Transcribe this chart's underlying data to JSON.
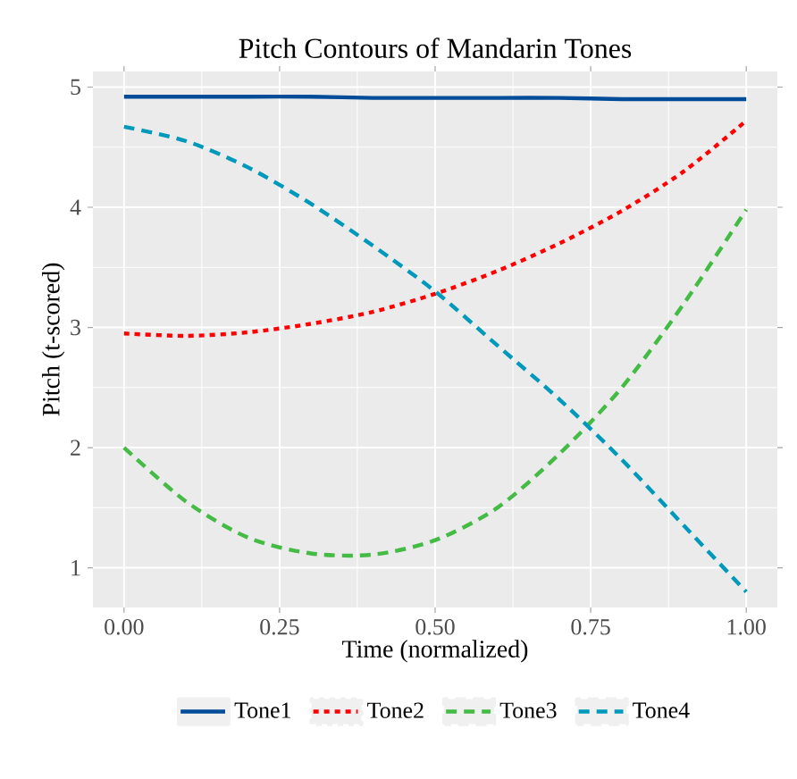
{
  "chart_data": {
    "type": "line",
    "title": "Pitch Contours of Mandarin Tones",
    "xlabel": "Time (normalized)",
    "ylabel": "Pitch (t-scored)",
    "x": [
      0,
      0.1,
      0.2,
      0.3,
      0.4,
      0.5,
      0.6,
      0.7,
      0.8,
      0.9,
      1.0
    ],
    "series": [
      {
        "name": "Tone1",
        "color": "#004c99",
        "line_style": "solid",
        "values": [
          4.92,
          4.92,
          4.92,
          4.92,
          4.91,
          4.91,
          4.91,
          4.91,
          4.9,
          4.9,
          4.9
        ]
      },
      {
        "name": "Tone2",
        "color": "#ff0000",
        "line_style": "dotted",
        "values": [
          2.95,
          2.93,
          2.96,
          3.03,
          3.13,
          3.28,
          3.47,
          3.7,
          3.97,
          4.3,
          4.72
        ]
      },
      {
        "name": "Tone3",
        "color": "#44bb44",
        "line_style": "dashed",
        "values": [
          2.0,
          1.55,
          1.25,
          1.12,
          1.11,
          1.23,
          1.5,
          1.95,
          2.5,
          3.2,
          3.98
        ]
      },
      {
        "name": "Tone4",
        "color": "#0099bb",
        "line_style": "dashed",
        "values": [
          4.67,
          4.55,
          4.33,
          4.03,
          3.68,
          3.3,
          2.85,
          2.4,
          1.9,
          1.35,
          0.8
        ]
      }
    ],
    "xlim": [
      -0.05,
      1.05
    ],
    "ylim": [
      0.67,
      5.13
    ],
    "xticks": [
      {
        "value": 0,
        "label": "0.00"
      },
      {
        "value": 0.25,
        "label": "0.25"
      },
      {
        "value": 0.5,
        "label": "0.50"
      },
      {
        "value": 0.75,
        "label": "0.75"
      },
      {
        "value": 1,
        "label": "1.00"
      }
    ],
    "yticks": [
      1,
      2,
      3,
      4,
      5
    ],
    "grid": true,
    "legend": "bottom",
    "marker": "none"
  }
}
